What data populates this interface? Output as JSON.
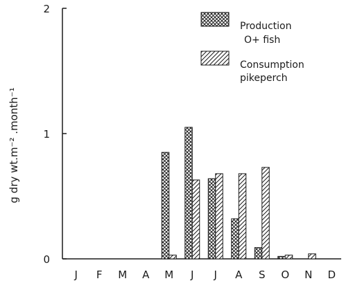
{
  "chart_data": {
    "type": "bar",
    "ylabel": "g dry wt.m⁻² .month⁻¹",
    "xlabel": "",
    "ylim": [
      0,
      2
    ],
    "yticks": [
      "0",
      "1",
      "2"
    ],
    "categories": [
      "J",
      "F",
      "M",
      "A",
      "M",
      "J",
      "J",
      "A",
      "S",
      "O",
      "N",
      "D"
    ],
    "series": [
      {
        "name": "Production O+ fish",
        "legend_line1": "Production",
        "legend_line2": "O+ fish",
        "pattern": "crosshatch",
        "values": [
          0,
          0,
          0,
          0,
          0.85,
          1.05,
          0.64,
          0.32,
          0.09,
          0.02,
          0,
          0
        ]
      },
      {
        "name": "Consumption pikeperch",
        "legend_line1": "Consumption",
        "legend_line2": "pikeperch",
        "pattern": "diagonal",
        "values": [
          0,
          0,
          0,
          0,
          0.03,
          0.63,
          0.68,
          0.68,
          0.73,
          0.03,
          0.04,
          0
        ]
      }
    ],
    "legend_position": "top-right",
    "grid": false,
    "colors": {
      "ink": "#1a1a1a",
      "background": "#ffffff"
    }
  }
}
